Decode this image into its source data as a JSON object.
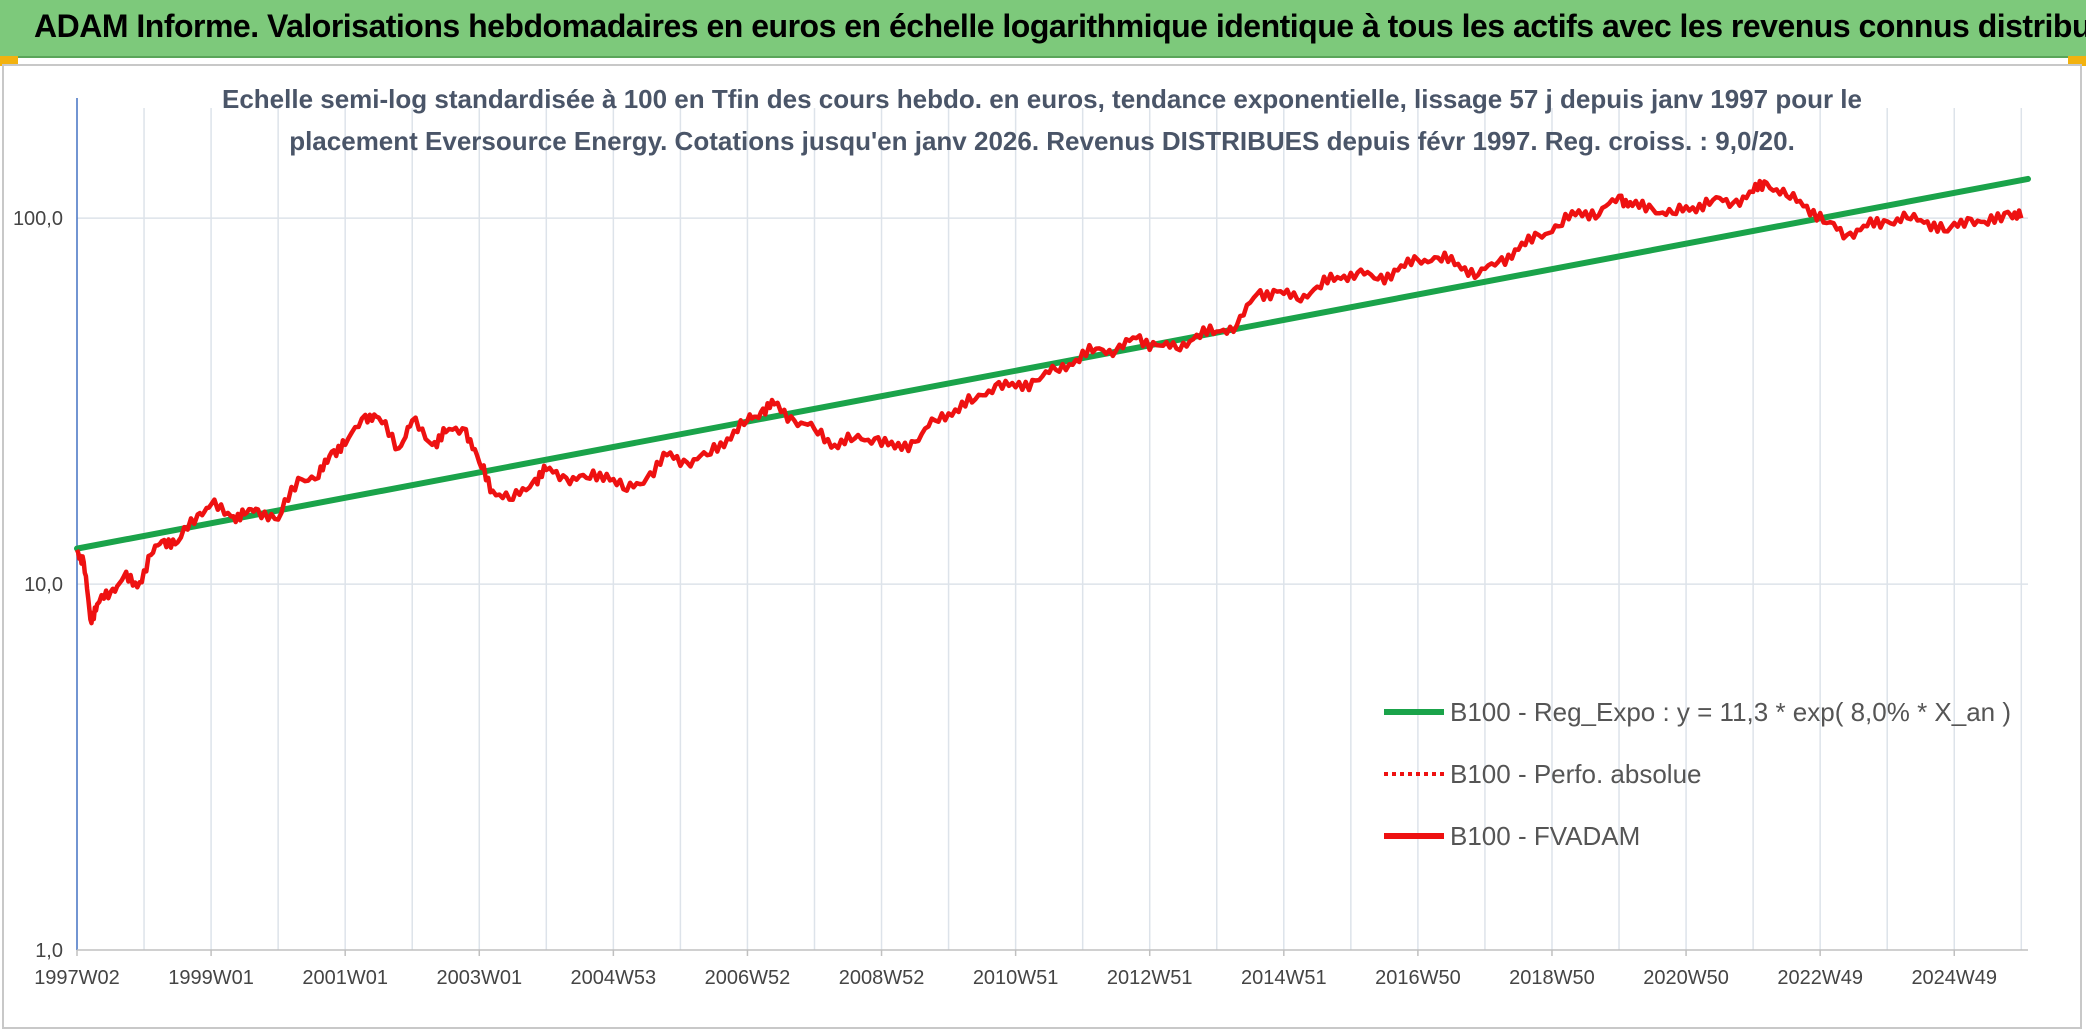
{
  "header": {
    "title": "ADAM Informe. Valorisations hebdomadaires en euros en échelle logarithmique identique à tous les actifs avec les revenus connus distribués"
  },
  "colors": {
    "header_bg": "#7dc97b",
    "corner_accent": "#f2b20f",
    "trend_line": "#1aa34a",
    "price_line": "#ee1111",
    "grid": "#dde3ea",
    "axis": "#4472c4"
  },
  "chart_data": {
    "type": "line",
    "title_lines": [
      "Echelle semi-log standardisée à 100 en Tfin des cours hebdo. en euros, tendance exponentielle, lissage 57 j depuis janv 1997 pour le",
      "placement Eversource Energy. Cotations jusqu'en janv 2026. Revenus DISTRIBUES depuis févr 1997. Reg. croiss. : 9,0/20."
    ],
    "y_scale": "log",
    "ylim": [
      1,
      200
    ],
    "y_ticks": [
      {
        "value": 1,
        "label": "1,0"
      },
      {
        "value": 10,
        "label": "10,0"
      },
      {
        "value": 100,
        "label": "100,0"
      }
    ],
    "xlim": [
      1997.0,
      2026.1
    ],
    "x_ticks": [
      {
        "year": 1997.0,
        "label": "1997W02"
      },
      {
        "year": 1999.0,
        "label": "1999W01"
      },
      {
        "year": 2001.0,
        "label": "2001W01"
      },
      {
        "year": 2003.0,
        "label": "2003W01"
      },
      {
        "year": 2005.0,
        "label": "2004W53"
      },
      {
        "year": 2007.0,
        "label": "2006W52"
      },
      {
        "year": 2009.0,
        "label": "2008W52"
      },
      {
        "year": 2011.0,
        "label": "2010W51"
      },
      {
        "year": 2013.0,
        "label": "2012W51"
      },
      {
        "year": 2015.0,
        "label": "2014W51"
      },
      {
        "year": 2017.0,
        "label": "2016W50"
      },
      {
        "year": 2019.0,
        "label": "2018W50"
      },
      {
        "year": 2021.0,
        "label": "2020W50"
      },
      {
        "year": 2023.0,
        "label": "2022W49"
      },
      {
        "year": 2025.0,
        "label": "2024W49"
      }
    ],
    "minor_grid_years": [
      1998,
      2000,
      2002,
      2004,
      2006,
      2008,
      2010,
      2012,
      2014,
      2016,
      2018,
      2020,
      2022,
      2024,
      2026
    ],
    "legend": [
      {
        "label": "B100 - Reg_Expo : y = 11,3 * exp( 8,0% *  X_an )",
        "style": "solid",
        "color": "#1aa34a"
      },
      {
        "label": "B100 - Perfo. absolue",
        "style": "dotted",
        "color": "#ee1111"
      },
      {
        "label": "B100 - FVADAM",
        "style": "solid",
        "color": "#ee1111"
      }
    ],
    "series": [
      {
        "name": "B100 - Reg_Expo : y = 11,3 * exp( 8,0% *  X_an )",
        "x": [
          1997.0,
          2026.1
        ],
        "y": [
          12.5,
          128
        ]
      },
      {
        "name": "B100 - FVADAM",
        "x": [
          1997.0,
          1997.1,
          1997.2,
          1997.3,
          1997.5,
          1997.7,
          1997.9,
          1998.1,
          1998.3,
          1998.5,
          1998.8,
          1999.0,
          1999.3,
          1999.5,
          1999.7,
          2000.0,
          2000.3,
          2000.6,
          2000.8,
          2001.0,
          2001.3,
          2001.5,
          2001.8,
          2002.0,
          2002.3,
          2002.5,
          2002.8,
          2003.0,
          2003.2,
          2003.5,
          2003.8,
          2004.0,
          2004.3,
          2004.6,
          2004.9,
          2005.2,
          2005.5,
          2005.8,
          2006.1,
          2006.4,
          2006.7,
          2007.0,
          2007.2,
          2007.4,
          2007.7,
          2008.0,
          2008.3,
          2008.6,
          2008.9,
          2009.2,
          2009.5,
          2009.8,
          2010.1,
          2010.4,
          2010.7,
          2011.0,
          2011.3,
          2011.6,
          2011.9,
          2012.2,
          2012.5,
          2012.8,
          2013.1,
          2013.4,
          2013.7,
          2014.0,
          2014.3,
          2014.6,
          2014.9,
          2015.2,
          2015.5,
          2015.8,
          2016.1,
          2016.4,
          2016.7,
          2017.0,
          2017.3,
          2017.6,
          2017.9,
          2018.2,
          2018.5,
          2018.8,
          2019.1,
          2019.4,
          2019.7,
          2020.0,
          2020.2,
          2020.5,
          2020.8,
          2021.1,
          2021.4,
          2021.7,
          2022.0,
          2022.2,
          2022.5,
          2022.8,
          2023.1,
          2023.4,
          2023.7,
          2024.0,
          2024.3,
          2024.6,
          2024.9,
          2025.2,
          2025.5,
          2025.8,
          2026.0
        ],
        "y": [
          12.4,
          11.5,
          8.0,
          8.8,
          9.5,
          10.5,
          9.8,
          12.0,
          13.2,
          13.0,
          15.5,
          16.5,
          15.3,
          15.5,
          16.0,
          15.0,
          19.5,
          19.5,
          23.0,
          24.0,
          29.0,
          28.5,
          23.5,
          28.0,
          24.0,
          26.0,
          26.5,
          21.5,
          18.0,
          17.0,
          19.0,
          20.5,
          19.5,
          19.5,
          20.0,
          18.0,
          19.5,
          22.5,
          21.5,
          22.5,
          25.0,
          28.0,
          29.5,
          31.0,
          28.0,
          26.5,
          24.0,
          25.0,
          25.0,
          23.5,
          24.5,
          28.0,
          30.0,
          32.0,
          35.0,
          34.5,
          36.0,
          38.5,
          41.0,
          44.0,
          43.5,
          47.0,
          45.0,
          44.0,
          48.0,
          49.0,
          51.0,
          62.0,
          63.0,
          60.0,
          65.0,
          69.0,
          71.0,
          68.0,
          72.0,
          77.0,
          78.0,
          75.0,
          70.0,
          76.0,
          82.0,
          90.0,
          95.0,
          105.0,
          102.0,
          115.0,
          108.0,
          106.0,
          103.0,
          107.0,
          112.0,
          110.0,
          118.0,
          125.0,
          115.0,
          108.0,
          97.0,
          90.0,
          95.0,
          98.0,
          100.0,
          98.0,
          92.0,
          100.0,
          96.0,
          104.0,
          100.0
        ]
      }
    ]
  }
}
